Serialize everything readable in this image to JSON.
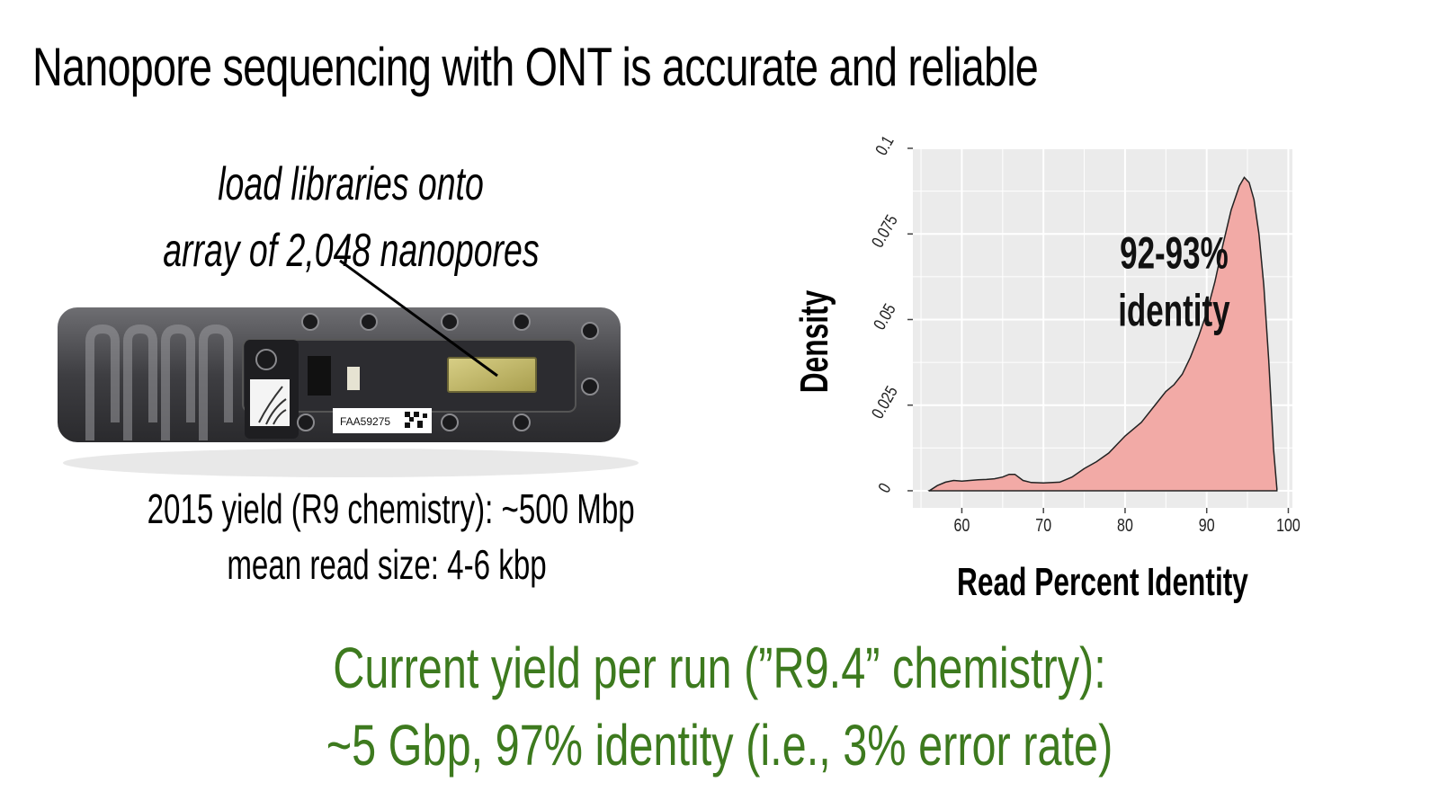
{
  "slide": {
    "title": "Nanopore sequencing with ONT is accurate and reliable",
    "callout": {
      "line1": "load libraries onto",
      "line2": "array of 2,048 nanopores"
    },
    "flowcell_label": "FAA59275",
    "caption": {
      "line1": "2015 yield (R9 chemistry): ~500 Mbp",
      "line2": "mean read size: 4-6 kbp"
    },
    "bottom": {
      "line1": "Current yield per run (”R9.4” chemistry):",
      "line2": "~5 Gbp, 97% identity (i.e., 3% error rate)",
      "color": "#3d7a1e"
    }
  },
  "chart_data": {
    "type": "area",
    "xlabel": "Read Percent Identity",
    "ylabel": "Density",
    "xlim": [
      54,
      100.5
    ],
    "ylim": [
      -0.005,
      0.1
    ],
    "x_ticks": [
      "60",
      "70",
      "80",
      "90",
      "100"
    ],
    "y_ticks": [
      "0",
      "0.025",
      "0.05",
      "0.075",
      "0.1"
    ],
    "annotation": {
      "line1": "92-93%",
      "line2": "identity",
      "x": 86,
      "y": 0.065
    },
    "fill_color": "#f2aaa6",
    "background_color": "#ebebeb",
    "series": [
      {
        "x": [
          56,
          57,
          58,
          59,
          60,
          61,
          62,
          63,
          64,
          65,
          65.8,
          66.5,
          67.5,
          68.5,
          70,
          72,
          73.5,
          75,
          76.5,
          78,
          80,
          82,
          84,
          85,
          86,
          87,
          88,
          89,
          90,
          91,
          92,
          93,
          94,
          94.6,
          95.2,
          95.8,
          96.4,
          97,
          97.6,
          98.2,
          98.6
        ],
        "y": [
          0.0,
          0.0015,
          0.0025,
          0.003,
          0.0028,
          0.003,
          0.0032,
          0.0033,
          0.0035,
          0.004,
          0.0048,
          0.0048,
          0.003,
          0.0024,
          0.0023,
          0.0025,
          0.004,
          0.0065,
          0.0085,
          0.011,
          0.016,
          0.02,
          0.026,
          0.029,
          0.031,
          0.034,
          0.039,
          0.045,
          0.052,
          0.061,
          0.072,
          0.082,
          0.089,
          0.0915,
          0.09,
          0.085,
          0.075,
          0.06,
          0.038,
          0.012,
          0.0005
        ]
      }
    ]
  }
}
